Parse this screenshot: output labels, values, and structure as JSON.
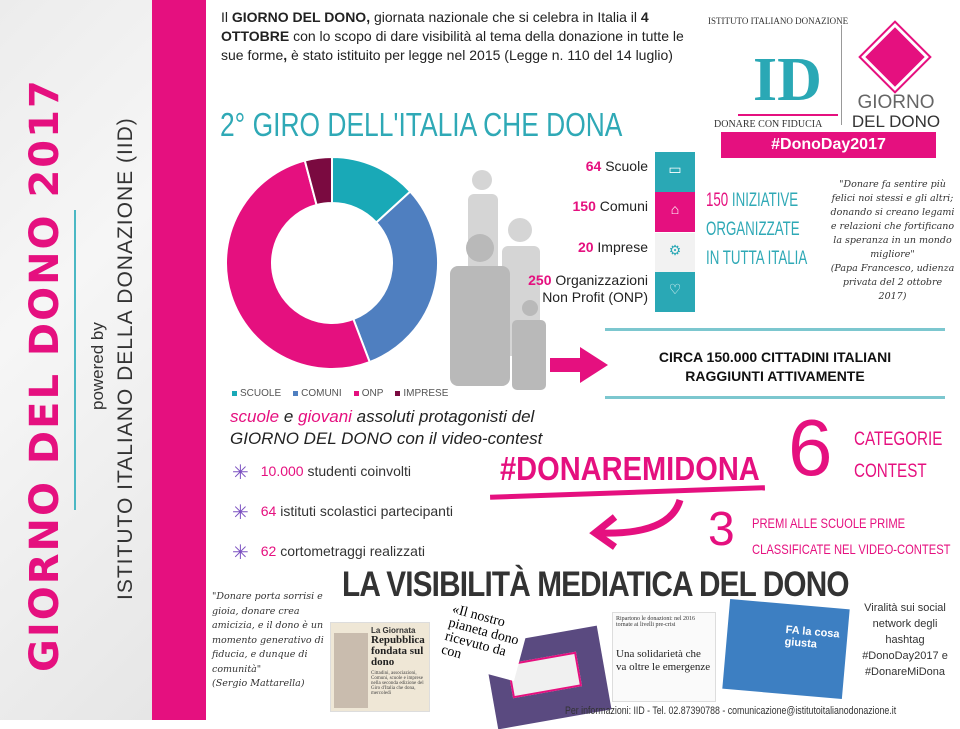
{
  "sidebar": {
    "title": "GIORNO DEL DONO 2017",
    "powered_by": "powered by",
    "organization": "ISTITUTO ITALIANO DELLA DONAZIONE (IID)"
  },
  "intro": {
    "p1": "Il ",
    "b1": "GIORNO DEL DONO,",
    "p2": " giornata nazionale che si celebra in Italia il ",
    "b2": "4 OTTOBRE",
    "p3": " con lo scopo di dare visibilità al tema della donazione in tutte le sue forme",
    "b3": ",",
    "p4": " è stato istituito per legge nel 2015 (Legge n. 110 del 14 luglio)"
  },
  "giro_title": "2° GIRO DELL'ITALIA CHE DONA",
  "logo": {
    "arc_text": "ISTITUTO ITALIANO DONAZIONE",
    "mark": "ID",
    "tagline": "DONARE CON FIDUCIA",
    "giorno": "GIORNO",
    "del_dono": "DEL DONO",
    "hashtag": "#DonoDay2017"
  },
  "chart_data": {
    "type": "pie",
    "donut": true,
    "categories": [
      "SCUOLE",
      "COMUNI",
      "ONP",
      "IMPRESE"
    ],
    "values": [
      64,
      150,
      250,
      20
    ],
    "colors": [
      "#19a9b7",
      "#4f7fc0",
      "#e5107f",
      "#7a0a40"
    ],
    "legend_position": "bottom"
  },
  "stats": [
    {
      "num": "64",
      "label": "Scuole",
      "tile": "SCUOLE",
      "icon": "book-icon",
      "color": "#2aa8b5"
    },
    {
      "num": "150",
      "label": "Comuni",
      "tile": "COMUNI",
      "icon": "building-icon",
      "color": "#e5107f"
    },
    {
      "num": "20",
      "label": "Imprese",
      "tile": "IMPRESE",
      "icon": "gears-icon",
      "color": "#f2f2f2"
    },
    {
      "num": "250",
      "label": "Organizzazioni",
      "label2": "Non Profit (ONP)",
      "tile": "NON PROFIT",
      "icon": "heart-icon",
      "color": "#2aa8b5"
    }
  ],
  "iniziative": {
    "num": "150",
    "l1": "INIZIATIVE",
    "l2": "ORGANIZZATE",
    "l3": "IN TUTTA ITALIA"
  },
  "quote_pope": {
    "text": "\"Donare fa sentire più felici noi stessi e gli altri; donando si creano legami e relazioni che fortificano la speranza in un mondo migliore\"",
    "source": "(Papa Francesco, udienza privata del 2 ottobre 2017)"
  },
  "citizens": {
    "l1": "CIRCA 150.000 CITTADINI ITALIANI",
    "l2": "RAGGIUNTI ATTIVAMENTE"
  },
  "contest": {
    "w1": "scuole",
    "w2": " e ",
    "w3": "giovani",
    "w4": " assoluti protagonisti del",
    "l2": "GIORNO DEL DONO con il video-contest",
    "bullets": [
      {
        "num": "10.000",
        "text": " studenti coinvolti"
      },
      {
        "num": "64",
        "text": " istituti scolastici partecipanti"
      },
      {
        "num": "62",
        "text": " cortometraggi realizzati"
      }
    ],
    "hashtag": "#DONAREMIDONA",
    "six": "6",
    "cat1": "CATEGORIE",
    "cat2": "CONTEST",
    "three": "3",
    "premi1": "PREMI ALLE SCUOLE PRIME",
    "premi2": "CLASSIFICATE NEL VIDEO-CONTEST"
  },
  "media": {
    "title": "LA VISIBILITÀ MEDIATICA DEL DONO",
    "quote": "\"Donare porta sorrisi e gioia, donare crea amicizia, e il dono è un momento generativo di fiducia, e dunque di comunità\"",
    "quote_source": "(Sergio Mattarella)",
    "clip1_head": "La Giornata",
    "clip1_title": "Repubblica fondata sul dono",
    "clip1_body": "Cittadini, associazioni, Comuni, scuole e imprese nella seconda edizione del Giro d'Italia che dona, mercoledì",
    "clip2": "«Il nostro pianeta dono ricevuto da con",
    "clip3_head": "Ripartono le donazioni: nel 2016 tornate ai livelli pre-crisi",
    "clip3_title": "Una solidarietà che va oltre le emergenze",
    "tv_text": "FA la cosa giusta",
    "viral": "Viralità sui social network degli hashtag #DonoDay2017 e #DonareMiDona"
  },
  "footer": "Per informazioni: IID - Tel. 02.87390788 - comunicazione@istitutoitalianodonazione.it"
}
